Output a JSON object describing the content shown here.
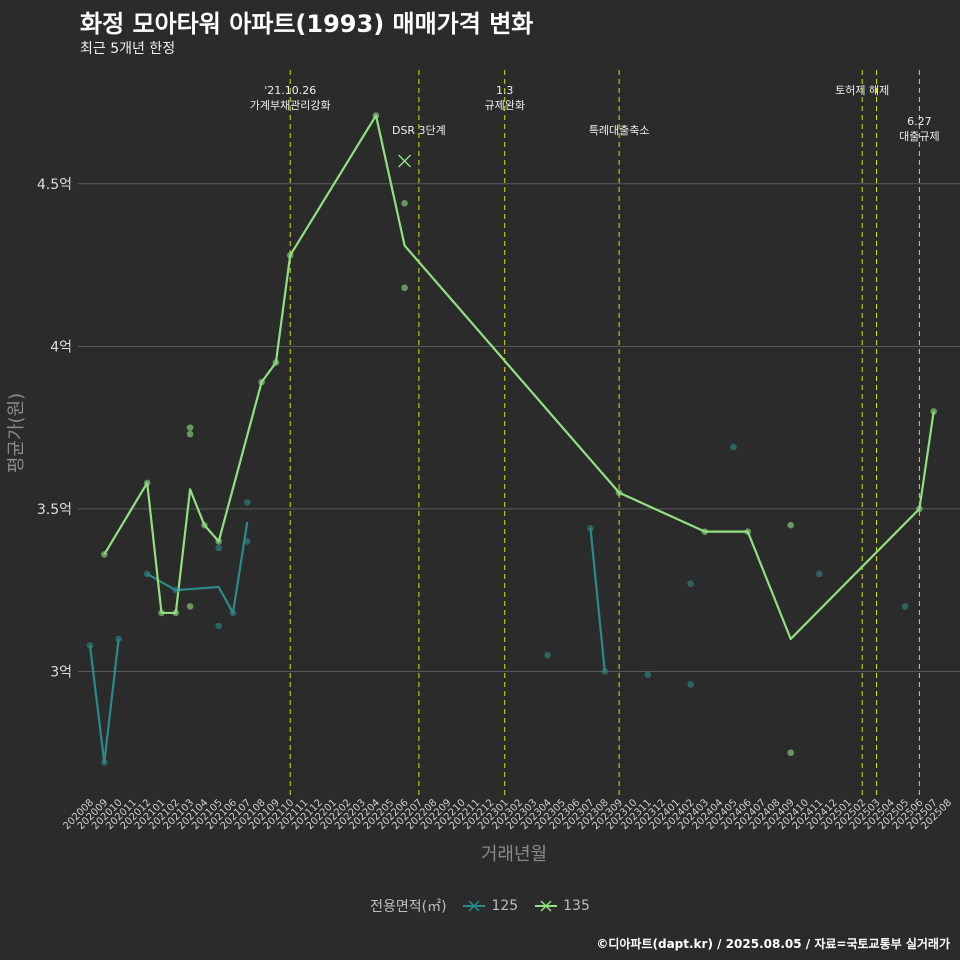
{
  "chart_data": {
    "type": "line",
    "title": "화정 모아타워 아파트(1993) 매매가격 변화",
    "subtitle": "최근 5개년 한정",
    "xlabel": "거래년월",
    "ylabel": "평균가(원)",
    "caption": "©디아파트(dapt.kr) / 2025.08.05 / 자료=국토교통부 실거래가",
    "legend_title": "전용면적(㎡)",
    "ylim": [
      2.62,
      4.85
    ],
    "y_ticks": [
      {
        "value": 3.0,
        "label": "3억"
      },
      {
        "value": 3.5,
        "label": "3.5억"
      },
      {
        "value": 4.0,
        "label": "4억"
      },
      {
        "value": 4.5,
        "label": "4.5억"
      }
    ],
    "x": [
      "202008",
      "202009",
      "202010",
      "202011",
      "202012",
      "202101",
      "202102",
      "202103",
      "202104",
      "202105",
      "202106",
      "202107",
      "202108",
      "202109",
      "202110",
      "202111",
      "202112",
      "202201",
      "202202",
      "202203",
      "202204",
      "202205",
      "202206",
      "202207",
      "202208",
      "202209",
      "202210",
      "202211",
      "202212",
      "202301",
      "202302",
      "202303",
      "202304",
      "202305",
      "202306",
      "202307",
      "202308",
      "202309",
      "202310",
      "202311",
      "202312",
      "202401",
      "202402",
      "202403",
      "202404",
      "202405",
      "202406",
      "202407",
      "202408",
      "202409",
      "202410",
      "202411",
      "202412",
      "202501",
      "202502",
      "202503",
      "202504",
      "202505",
      "202506",
      "202507",
      "202508"
    ],
    "series": [
      {
        "name": "125",
        "color": "#2a8a8a",
        "line": [
          [
            "202008",
            3.08
          ],
          [
            "202009",
            2.72
          ],
          [
            "202010",
            3.1
          ],
          null,
          [
            "202012",
            3.3
          ],
          [
            "202102",
            3.25
          ],
          [
            "202105",
            3.26
          ],
          [
            "202106",
            3.18
          ],
          [
            "202107",
            3.46
          ],
          null,
          [
            "202307",
            3.44
          ],
          [
            "202308",
            3.0
          ]
        ],
        "points": [
          [
            "202008",
            3.08
          ],
          [
            "202009",
            2.72
          ],
          [
            "202010",
            3.1
          ],
          [
            "202012",
            3.3
          ],
          [
            "202102",
            3.25
          ],
          [
            "202105",
            3.38
          ],
          [
            "202105",
            3.14
          ],
          [
            "202106",
            3.18
          ],
          [
            "202107",
            3.52
          ],
          [
            "202107",
            3.4
          ],
          [
            "202304",
            3.05
          ],
          [
            "202307",
            3.44
          ],
          [
            "202308",
            3.0
          ],
          [
            "202311",
            2.99
          ],
          [
            "202402",
            3.27
          ],
          [
            "202402",
            2.96
          ],
          [
            "202405",
            3.69
          ],
          [
            "202411",
            3.3
          ],
          [
            "202505",
            3.2
          ]
        ]
      },
      {
        "name": "135",
        "color": "#90e080",
        "line": [
          [
            "202009",
            3.36
          ],
          [
            "202012",
            3.58
          ],
          [
            "202101",
            3.18
          ],
          [
            "202102",
            3.18
          ],
          [
            "202103",
            3.56
          ],
          [
            "202104",
            3.45
          ],
          [
            "202105",
            3.4
          ],
          [
            "202108",
            3.89
          ],
          [
            "202109",
            3.95
          ],
          [
            "202110",
            4.28
          ],
          [
            "202204",
            4.71
          ],
          [
            "202206",
            4.31
          ],
          [
            "202309",
            3.55
          ],
          [
            "202403",
            3.43
          ],
          [
            "202404",
            3.43
          ],
          [
            "202406",
            3.43
          ],
          [
            "202409",
            3.1
          ],
          [
            "202506",
            3.5
          ],
          [
            "202507",
            3.8
          ]
        ],
        "points": [
          [
            "202009",
            3.36
          ],
          [
            "202012",
            3.58
          ],
          [
            "202101",
            3.18
          ],
          [
            "202102",
            3.18
          ],
          [
            "202103",
            3.75
          ],
          [
            "202103",
            3.73
          ],
          [
            "202103",
            3.2
          ],
          [
            "202104",
            3.45
          ],
          [
            "202105",
            3.4
          ],
          [
            "202108",
            3.89
          ],
          [
            "202109",
            3.95
          ],
          [
            "202110",
            4.28
          ],
          [
            "202204",
            4.71
          ],
          [
            "202206",
            4.44
          ],
          [
            "202206",
            4.18
          ],
          [
            "202309",
            3.55
          ],
          [
            "202403",
            3.43
          ],
          [
            "202406",
            3.43
          ],
          [
            "202409",
            3.45
          ],
          [
            "202409",
            2.75
          ],
          [
            "202506",
            3.5
          ],
          [
            "202507",
            3.8
          ]
        ],
        "cancelled": [
          [
            "202206",
            4.57
          ]
        ]
      }
    ],
    "events": [
      {
        "x": "202110",
        "label": "'21.10.26\n가계부채관리강화",
        "level": 0
      },
      {
        "x": "202207",
        "label": "DSR 3단계",
        "level": 1
      },
      {
        "x": "202301",
        "label": "1.3\n규제완화",
        "level": 0
      },
      {
        "x": "202309",
        "label": "특례대출축소",
        "level": 1
      },
      {
        "x": "202502",
        "label": "토허제 해제",
        "level": 0
      },
      {
        "x": "202503",
        "label": "",
        "level": 0
      },
      {
        "x": "202506",
        "label": "6.27\n대출규제",
        "level": 1
      }
    ]
  }
}
